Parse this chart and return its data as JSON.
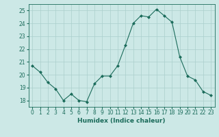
{
  "x": [
    0,
    1,
    2,
    3,
    4,
    5,
    6,
    7,
    8,
    9,
    10,
    11,
    12,
    13,
    14,
    15,
    16,
    17,
    18,
    19,
    20,
    21,
    22,
    23
  ],
  "y": [
    20.7,
    20.2,
    19.4,
    18.9,
    18.0,
    18.5,
    18.0,
    17.9,
    19.3,
    19.9,
    19.9,
    20.7,
    22.3,
    24.0,
    24.6,
    24.5,
    25.1,
    24.6,
    24.1,
    21.4,
    19.9,
    19.6,
    18.7,
    18.4
  ],
  "line_color": "#1a6b5a",
  "marker": "D",
  "marker_size": 2.0,
  "bg_color": "#cce8e6",
  "grid_color": "#aacfcc",
  "xlabel": "Humidex (Indice chaleur)",
  "xlim": [
    -0.5,
    23.5
  ],
  "ylim": [
    17.5,
    25.5
  ],
  "yticks": [
    18,
    19,
    20,
    21,
    22,
    23,
    24,
    25
  ],
  "xticks": [
    0,
    1,
    2,
    3,
    4,
    5,
    6,
    7,
    8,
    9,
    10,
    11,
    12,
    13,
    14,
    15,
    16,
    17,
    18,
    19,
    20,
    21,
    22,
    23
  ],
  "tick_color": "#1a6b5a",
  "label_color": "#1a6b5a",
  "tick_fontsize": 5.5,
  "xlabel_fontsize": 6.5
}
